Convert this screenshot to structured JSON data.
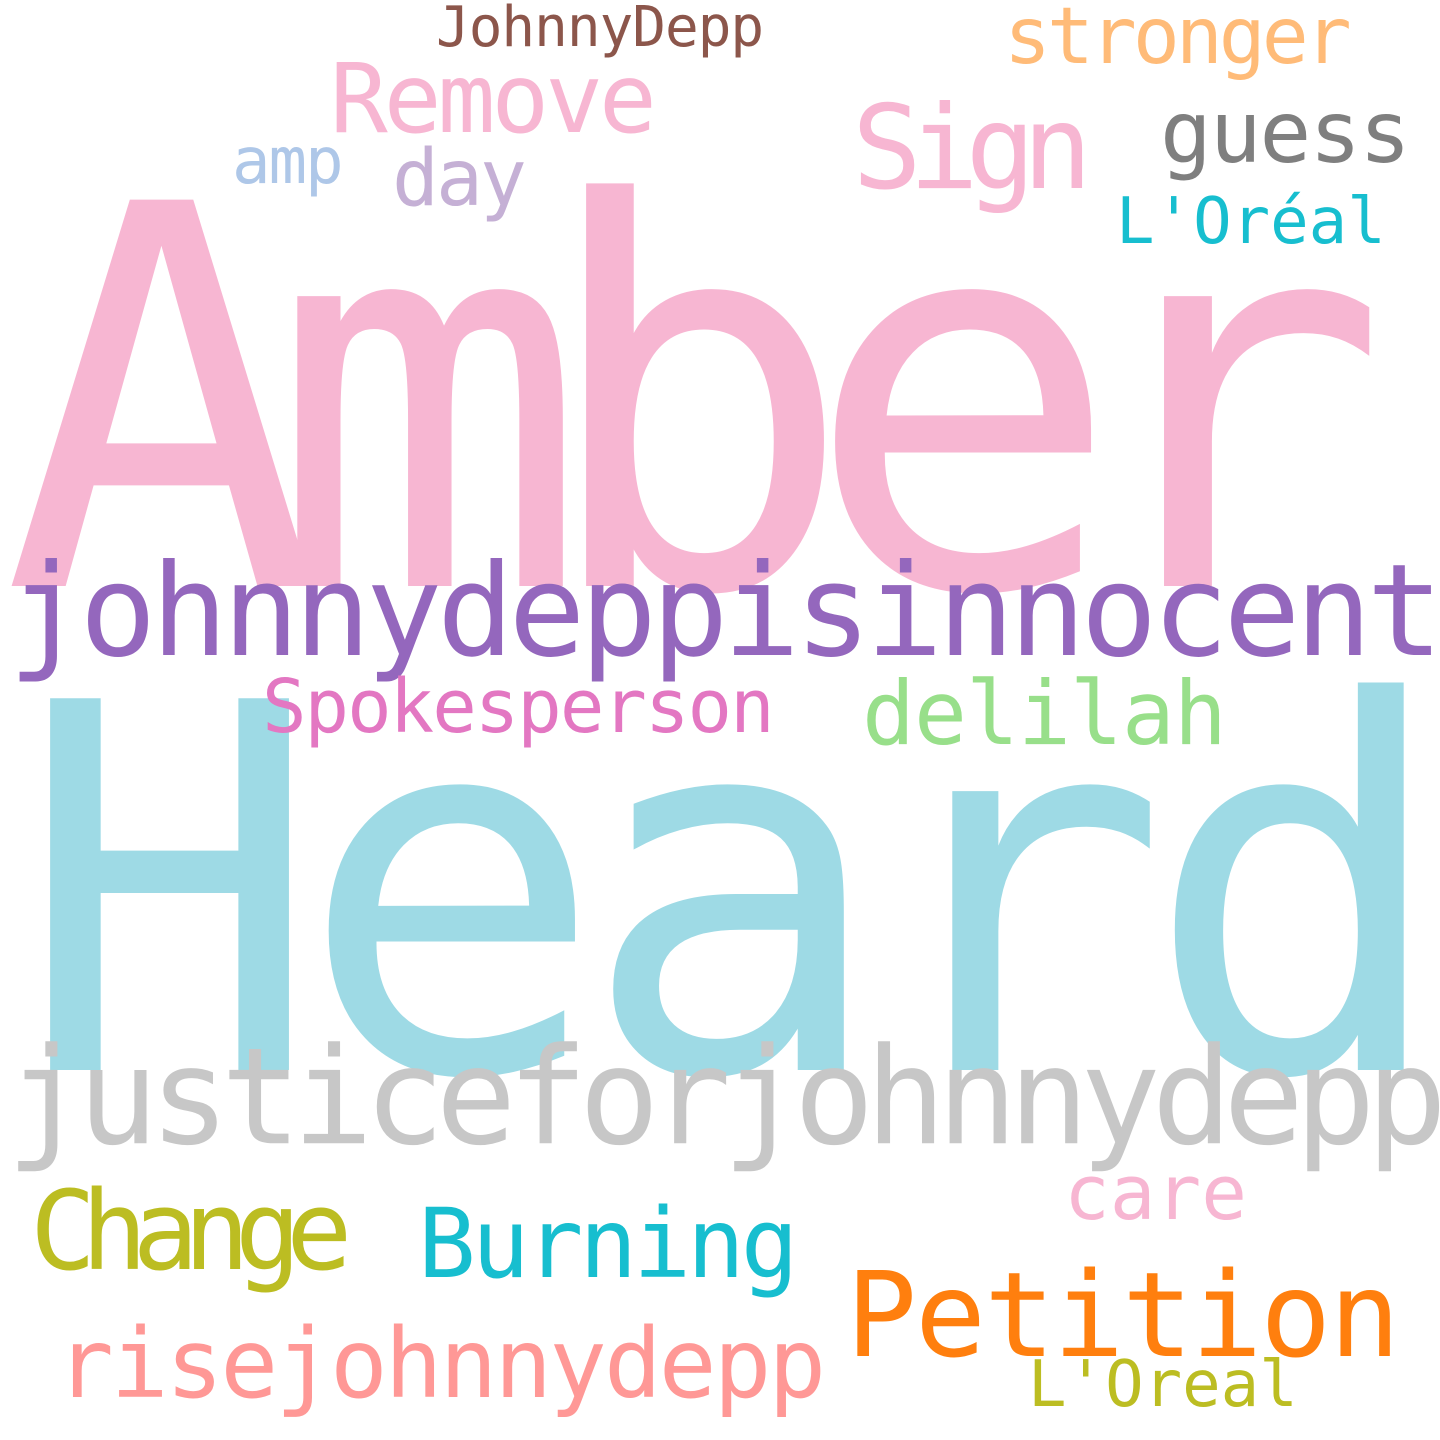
{
  "word_cloud": {
    "background": "#ffffff",
    "words": [
      {
        "text": "Amber",
        "color": "#f7b6d2"
      },
      {
        "text": "Heard",
        "color": "#9edae5"
      },
      {
        "text": "justiceforjohnnydepp",
        "color": "#c7c7c7"
      },
      {
        "text": "johnnydeppisinnocent",
        "color": "#9467bd"
      },
      {
        "text": "Petition",
        "color": "#ff7f0e"
      },
      {
        "text": "Change",
        "color": "#bcbd22"
      },
      {
        "text": "Burning",
        "color": "#17becf"
      },
      {
        "text": "risejohnnydepp",
        "color": "#ff9896"
      },
      {
        "text": "Sign",
        "color": "#f7b6d2"
      },
      {
        "text": "Remove",
        "color": "#f7b6d2"
      },
      {
        "text": "stronger",
        "color": "#ffbb78"
      },
      {
        "text": "guess",
        "color": "#7f7f7f"
      },
      {
        "text": "delilah",
        "color": "#98df8a"
      },
      {
        "text": "Spokesperson",
        "color": "#e377c2"
      },
      {
        "text": "care",
        "color": "#f7b6d2"
      },
      {
        "text": "L'Oréal",
        "color": "#17becf"
      },
      {
        "text": "L'Oreal",
        "color": "#bcbd22"
      },
      {
        "text": "day",
        "color": "#c5b0d5"
      },
      {
        "text": "amp",
        "color": "#aec7e8"
      },
      {
        "text": "JohnnyDepp",
        "color": "#8c564b"
      }
    ]
  }
}
